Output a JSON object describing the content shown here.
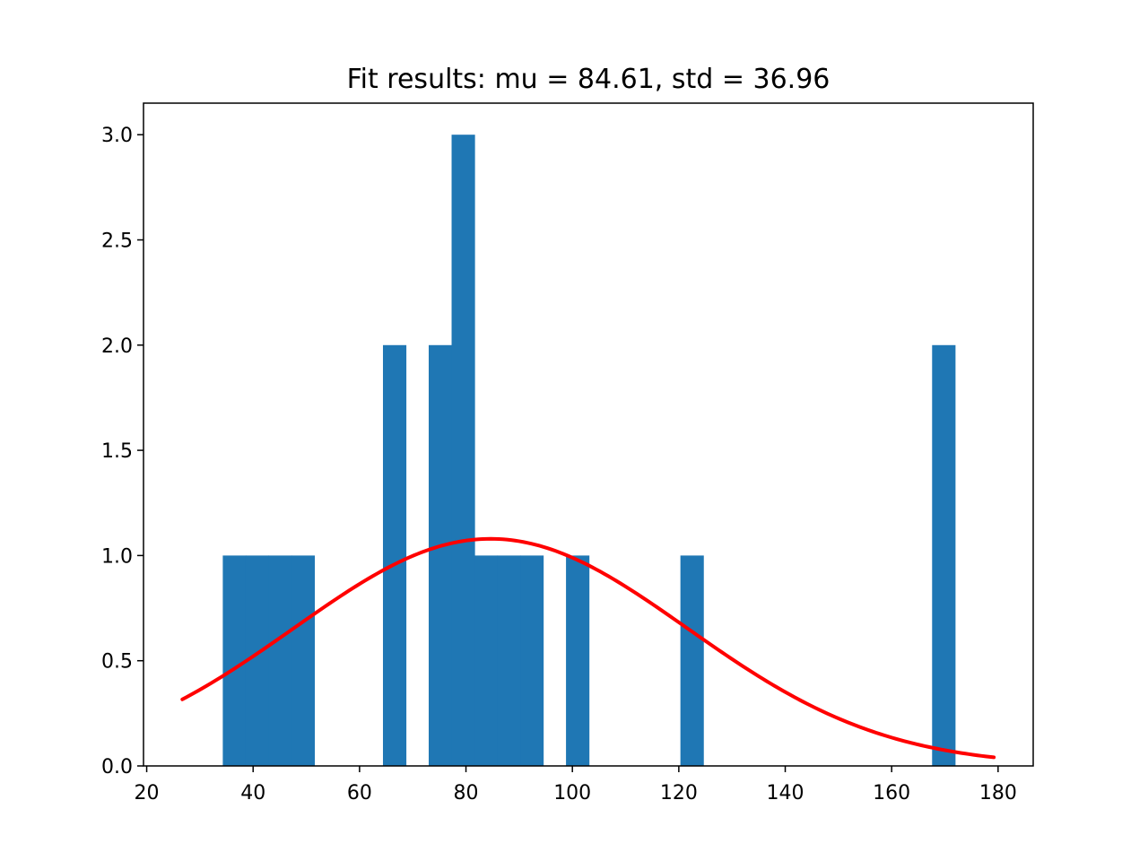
{
  "chart_data": {
    "type": "bar",
    "title": "Fit results: mu = 84.61,  std = 36.96",
    "xlabel": "",
    "ylabel": "",
    "xlim": [
      19.4,
      186.6
    ],
    "ylim": [
      0,
      3.15
    ],
    "grid": false,
    "x_ticks": [
      20,
      40,
      60,
      80,
      100,
      120,
      140,
      160,
      180
    ],
    "x_tick_labels": [
      "20",
      "40",
      "60",
      "80",
      "100",
      "120",
      "140",
      "160",
      "180"
    ],
    "y_ticks": [
      0.0,
      0.5,
      1.0,
      1.5,
      2.0,
      2.5,
      3.0
    ],
    "y_tick_labels": [
      "0.0",
      "0.5",
      "1.0",
      "1.5",
      "2.0",
      "2.5",
      "3.0"
    ],
    "histogram": {
      "name": "",
      "color": "#1f77b4",
      "bin_edges": [
        34.3,
        38.6,
        42.9,
        47.2,
        51.5,
        55.8,
        60.1,
        64.4,
        68.7,
        73.0,
        77.3,
        81.6,
        85.9,
        90.2,
        94.5,
        98.8,
        103.1,
        107.4,
        111.7,
        116.0,
        120.3,
        124.6,
        128.9,
        133.2,
        137.5,
        141.8,
        146.1,
        150.4,
        154.7,
        159.0,
        163.3,
        167.6,
        171.9
      ],
      "counts": [
        1,
        1,
        1,
        1,
        0,
        0,
        0,
        2,
        0,
        2,
        3,
        1,
        1,
        1,
        0,
        1,
        0,
        0,
        0,
        0,
        1,
        0,
        0,
        0,
        0,
        0,
        0,
        0,
        0,
        0,
        0,
        2
      ]
    },
    "fit_curve": {
      "name": "",
      "color": "#ff0000",
      "distribution": "normal",
      "mu": 84.61,
      "std": 36.96,
      "x_range": [
        26.7,
        179.2
      ],
      "scale": 100
    }
  }
}
